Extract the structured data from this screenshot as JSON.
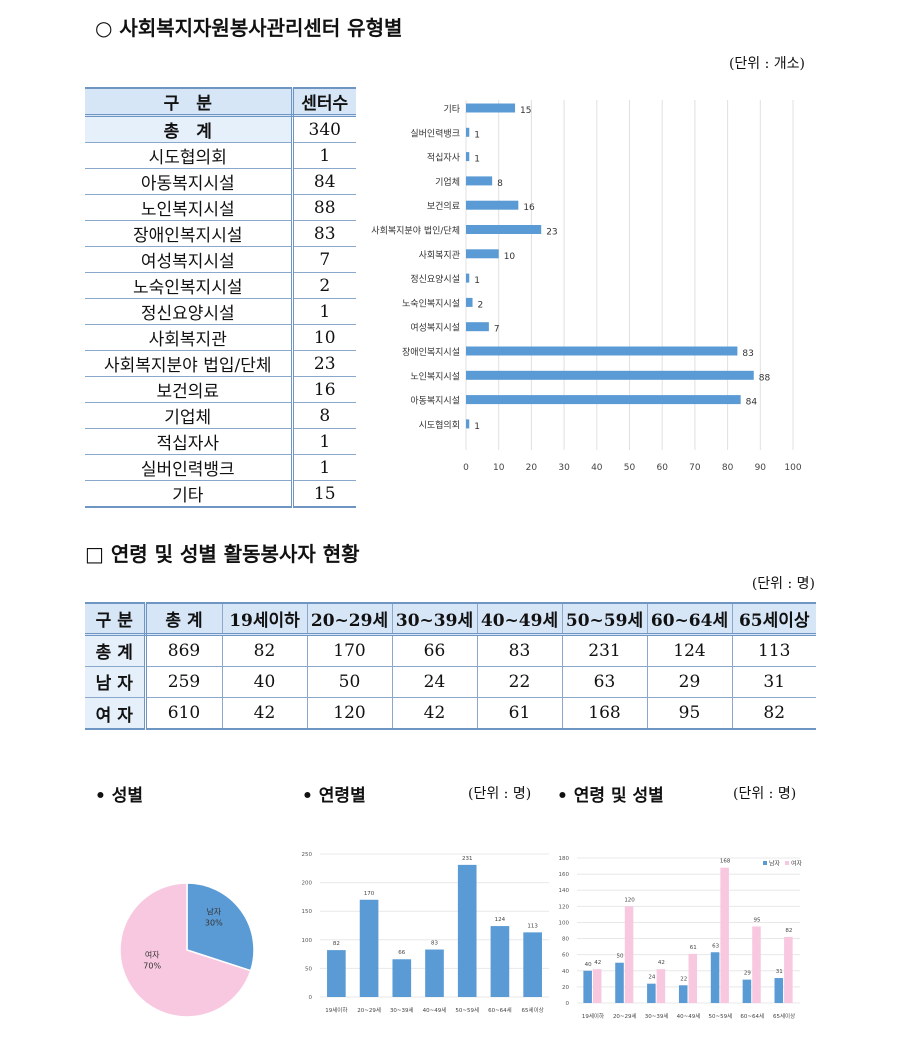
{
  "section1": {
    "title": "○ 사회복지자원봉사관리센터 유형별",
    "unit": "(단위 : 개소)",
    "table": {
      "headers": [
        "구　분",
        "센터수"
      ],
      "rows": [
        [
          "총　계",
          "340"
        ],
        [
          "시도협의회",
          "1"
        ],
        [
          "아동복지시설",
          "84"
        ],
        [
          "노인복지시설",
          "88"
        ],
        [
          "장애인복지시설",
          "83"
        ],
        [
          "여성복지시설",
          "7"
        ],
        [
          "노숙인복지시설",
          "2"
        ],
        [
          "정신요양시설",
          "1"
        ],
        [
          "사회복지관",
          "10"
        ],
        [
          "사회복지분야 법입/단체",
          "23"
        ],
        [
          "보건의료",
          "16"
        ],
        [
          "기업체",
          "8"
        ],
        [
          "적십자사",
          "1"
        ],
        [
          "실버인력뱅크",
          "1"
        ],
        [
          "기타",
          "15"
        ]
      ]
    }
  },
  "section2": {
    "title": "□ 연령 및 성별 활동봉사자 현황",
    "unit": "(단위 : 명)",
    "table": {
      "headers": [
        "구 분",
        "총 계",
        "19세이하",
        "20~29세",
        "30~39세",
        "40~49세",
        "50~59세",
        "60~64세",
        "65세이상"
      ],
      "rows": [
        [
          "총 계",
          "869",
          "82",
          "170",
          "66",
          "83",
          "231",
          "124",
          "113"
        ],
        [
          "남 자",
          "259",
          "40",
          "50",
          "24",
          "22",
          "63",
          "29",
          "31"
        ],
        [
          "여 자",
          "610",
          "42",
          "120",
          "42",
          "61",
          "168",
          "95",
          "82"
        ]
      ]
    }
  },
  "section3": {
    "gender_label": "• 성별",
    "age_label": "• 연령별",
    "age_unit": "(단위 : 명)",
    "agegender_label": "• 연령 및 성별",
    "agegender_unit": "(단위 : 명)"
  },
  "chart_data": [
    {
      "type": "bar",
      "orientation": "horizontal",
      "categories": [
        "기타",
        "실버인력뱅크",
        "적십자사",
        "기업체",
        "보건의료",
        "사회복지분야 법인/단체",
        "사회복지관",
        "정신요양시설",
        "노숙인복지시설",
        "여성복지시설",
        "장애인복지시설",
        "노인복지시설",
        "아동복지시설",
        "시도협의회"
      ],
      "values": [
        15,
        1,
        1,
        8,
        16,
        23,
        10,
        1,
        2,
        7,
        83,
        88,
        84,
        1
      ],
      "xlim": [
        0,
        100
      ],
      "ticks": [
        0,
        10,
        20,
        30,
        40,
        50,
        60,
        70,
        80,
        90,
        100
      ],
      "grid": true,
      "color": "#5b9bd5"
    },
    {
      "type": "pie",
      "slices": [
        {
          "label": "남자",
          "value": 30,
          "text": "30%",
          "color": "#5b9bd5"
        },
        {
          "label": "여자",
          "value": 70,
          "text": "70%",
          "color": "#f8c8e0"
        }
      ]
    },
    {
      "type": "bar",
      "categories": [
        "19세이하",
        "20~29세",
        "30~39세",
        "40~49세",
        "50~59세",
        "60~64세",
        "65세이상"
      ],
      "values": [
        82,
        170,
        66,
        83,
        231,
        124,
        113
      ],
      "ylim": [
        0,
        250
      ],
      "ticks": [
        0,
        50,
        100,
        150,
        200,
        250
      ],
      "grid": true,
      "color": "#5b9bd5"
    },
    {
      "type": "bar",
      "categories": [
        "19세이하",
        "20~29세",
        "30~39세",
        "40~49세",
        "50~59세",
        "60~64세",
        "65세이상"
      ],
      "series": [
        {
          "name": "남자",
          "values": [
            40,
            50,
            24,
            22,
            63,
            29,
            31
          ],
          "color": "#5b9bd5"
        },
        {
          "name": "여자",
          "values": [
            42,
            120,
            42,
            61,
            168,
            95,
            82
          ],
          "color": "#f8c8e0"
        }
      ],
      "ylim": [
        0,
        180
      ],
      "ticks": [
        0,
        20,
        40,
        60,
        80,
        100,
        120,
        140,
        160,
        180
      ],
      "grid": true,
      "legend": "top-right"
    }
  ]
}
